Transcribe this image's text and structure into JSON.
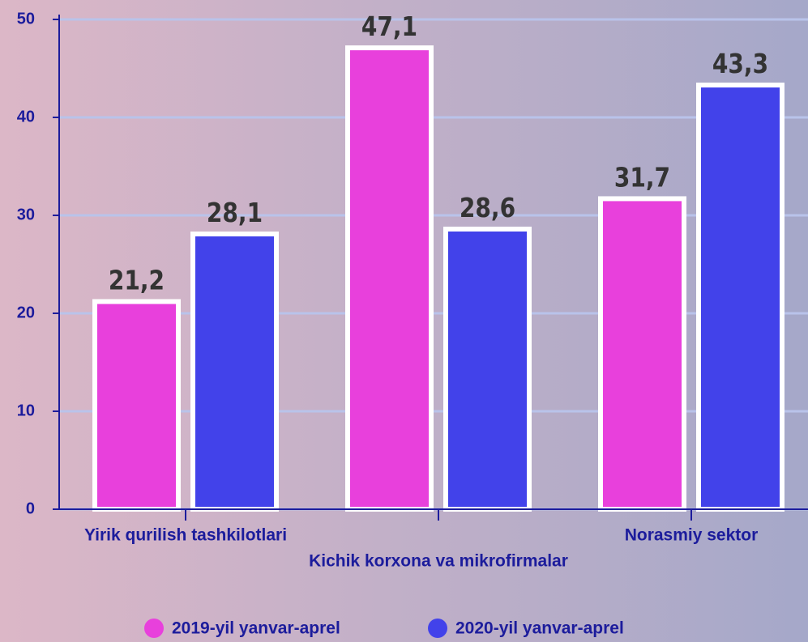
{
  "chart_data": {
    "type": "bar",
    "categories": [
      "Yirik qurilish tashkilotlari",
      "Kichik korxona va mikrofirmalar",
      "Norasmiy sektor"
    ],
    "series": [
      {
        "name": "2019-yil yanvar-aprel",
        "color": "#e840dc",
        "values": [
          21.2,
          47.1,
          31.7
        ],
        "value_labels": [
          "21,2",
          "47,1",
          "31,7"
        ]
      },
      {
        "name": "2020-yil yanvar-aprel",
        "color": "#4242ea",
        "values": [
          28.1,
          28.6,
          43.3
        ],
        "value_labels": [
          "28,1",
          "28,6",
          "43,3"
        ]
      }
    ],
    "ylim": [
      0,
      50
    ],
    "yticks": [
      0,
      10,
      20,
      30,
      40,
      50
    ],
    "grid": true,
    "legend": "bottom"
  }
}
